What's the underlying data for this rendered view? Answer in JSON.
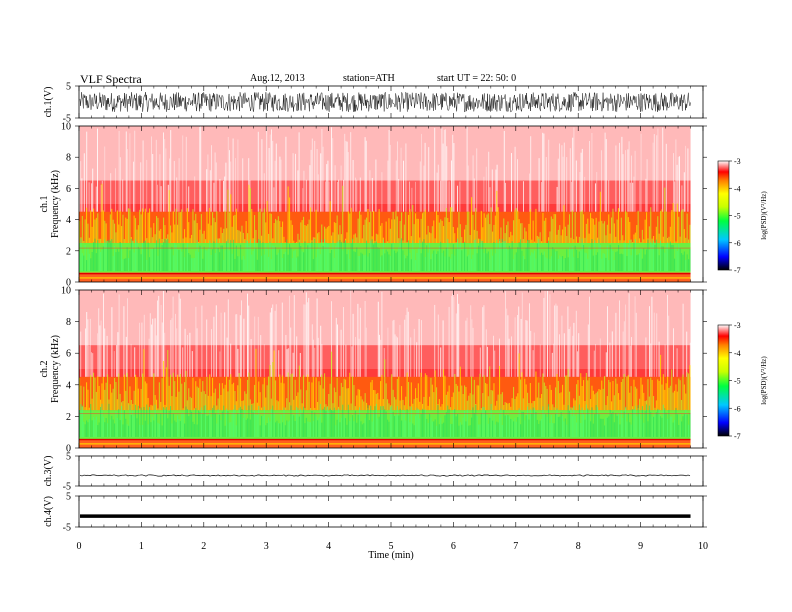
{
  "header": {
    "title": "VLF  Spectra",
    "date": "Aug.12, 2013",
    "station": "station=ATH",
    "start_ut": "start  UT  =   22: 50: 0"
  },
  "chart_data": [
    {
      "type": "line",
      "panel": "ch1-waveform",
      "ylabel": "ch.1(V)",
      "ylim": [
        -5,
        5
      ],
      "yticks": [
        "5",
        "-5"
      ],
      "xlim": [
        0,
        10
      ],
      "signal": "dense noise, approximately -3 to +3 V, spanning 0 to 9.8 min"
    },
    {
      "type": "heatmap",
      "panel": "ch1-spectrogram",
      "ylabel": "ch.1\nFrequency  (kHz)",
      "ylim": [
        0,
        10
      ],
      "yticks": [
        "0",
        "2",
        "4",
        "6",
        "8",
        "10"
      ],
      "xlim": [
        0,
        10
      ],
      "data_end_min": 9.8,
      "colorbar": {
        "label": "log(PSD)(V²/Hz)",
        "range": [
          -7,
          -3
        ],
        "ticks": [
          "-3",
          "-4",
          "-5",
          "-6",
          "-7"
        ]
      },
      "bands": [
        {
          "f_khz": [
            0,
            0.6
          ],
          "level": "red/yellow"
        },
        {
          "f_khz": [
            0.6,
            2.5
          ],
          "level": "green"
        },
        {
          "f_khz": [
            2.5,
            4.5
          ],
          "level": "yellow/red"
        },
        {
          "f_khz": [
            4.5,
            10
          ],
          "level": "red fading to white"
        }
      ]
    },
    {
      "type": "heatmap",
      "panel": "ch2-spectrogram",
      "ylabel": "ch.2\nFrequency  (kHz)",
      "ylim": [
        0,
        10
      ],
      "yticks": [
        "0",
        "2",
        "4",
        "6",
        "8",
        "10"
      ],
      "xlim": [
        0,
        10
      ],
      "data_end_min": 9.8,
      "colorbar": {
        "label": "log(PSD)(V²/Hz)",
        "range": [
          -7,
          -3
        ],
        "ticks": [
          "-3",
          "-4",
          "-5",
          "-6",
          "-7"
        ]
      },
      "bands": [
        {
          "f_khz": [
            0,
            0.5
          ],
          "level": "red/yellow"
        },
        {
          "f_khz": [
            0.5,
            2.4
          ],
          "level": "green"
        },
        {
          "f_khz": [
            2.4,
            4.5
          ],
          "level": "yellow/red"
        },
        {
          "f_khz": [
            4.5,
            10
          ],
          "level": "red fading to white"
        }
      ]
    },
    {
      "type": "line",
      "panel": "ch3-waveform",
      "ylabel": "ch.3(V)",
      "ylim": [
        -5,
        5
      ],
      "yticks": [
        "5",
        "-5"
      ],
      "xlim": [
        0,
        10
      ],
      "signal": "near-flat trace at about -1.5 V with small noise"
    },
    {
      "type": "line",
      "panel": "ch4-waveform",
      "ylabel": "ch.4(V)",
      "ylim": [
        -5,
        5
      ],
      "yticks": [
        "5",
        "-5"
      ],
      "xlim": [
        0,
        10
      ],
      "xlabel": "Time  (min)",
      "xticks": [
        "0",
        "1",
        "2",
        "3",
        "4",
        "5",
        "6",
        "7",
        "8",
        "9",
        "10"
      ],
      "signal": "thick flat trace at about -1.5 V"
    }
  ]
}
